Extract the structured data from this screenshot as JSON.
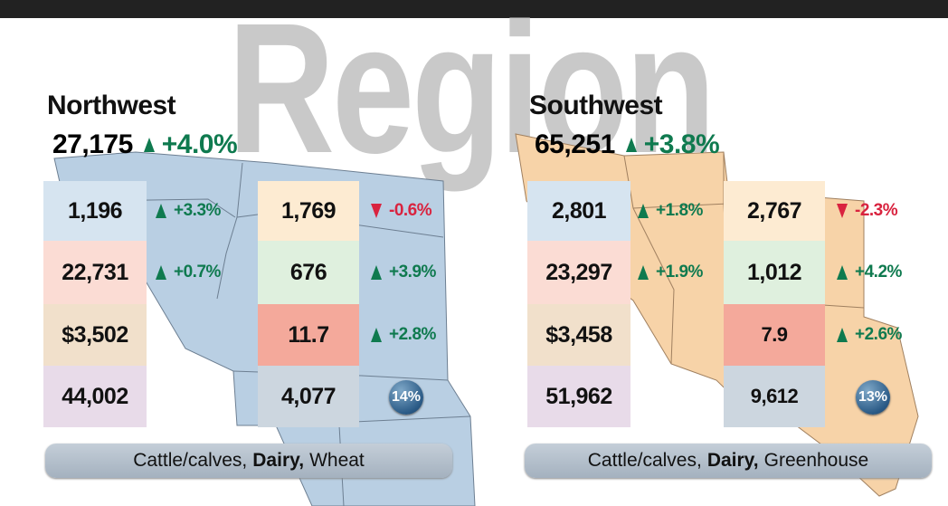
{
  "background_title": "Region",
  "regions": [
    {
      "name": "Northwest",
      "total": "27,175",
      "change": "+4.0%",
      "left": [
        {
          "value": "1,196",
          "change": "+3.3%"
        },
        {
          "value": "22,731",
          "change": "+0.7%"
        },
        {
          "value": "$3,502"
        },
        {
          "value": "44,002"
        }
      ],
      "right": [
        {
          "value": "1,769",
          "change": "-0.6%"
        },
        {
          "value": "676",
          "change": "+3.9%"
        },
        {
          "value": "11.7",
          "change": "+2.8%"
        },
        {
          "value": "4,077"
        }
      ],
      "share": "14%",
      "products": [
        "Cattle/calves,",
        "Dairy,",
        "Wheat"
      ]
    },
    {
      "name": "Southwest",
      "total": "65,251",
      "change": "+3.8%",
      "left": [
        {
          "value": "2,801",
          "change": "+1.8%"
        },
        {
          "value": "23,297",
          "change": "+1.9%"
        },
        {
          "value": "$3,458"
        },
        {
          "value": "51,962"
        }
      ],
      "right": [
        {
          "value": "2,767",
          "change": "-2.3%"
        },
        {
          "value": "1,012",
          "change": "+4.2%"
        },
        {
          "value": "7.9",
          "change": "+2.6%"
        },
        {
          "value": "9,612"
        }
      ],
      "share": "13%",
      "products": [
        "Cattle/calves,",
        "Dairy,",
        "Greenhouse"
      ]
    }
  ]
}
